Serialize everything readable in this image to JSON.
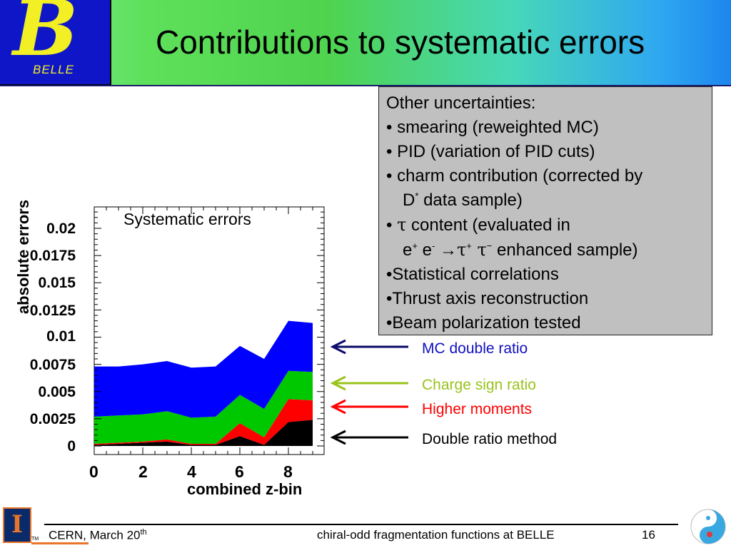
{
  "header": {
    "title": "Contributions to systematic errors",
    "logo_text": "BELLE",
    "logo_letter": "B",
    "gradient_colors": [
      "#7ef0a0",
      "#4fd34f",
      "#47d8b8",
      "#1d86ee"
    ]
  },
  "uncertainties": {
    "heading": "Other uncertainties:",
    "line1": "• smearing (reweighted MC)",
    "line2": "• PID (variation of PID cuts)",
    "line3": "• charm contribution (corrected by",
    "line4_a": "D",
    "line4_sup": "*",
    "line4_b": " data sample)",
    "line5_a": "• ",
    "line5_tau": "τ",
    "line5_b": " content (evaluated in",
    "line6_e1": "e",
    "line6_sup1": "+",
    "line6_e2": " e",
    "line6_sup2": "-",
    "line6_arrow": " →",
    "line6_tau1": "τ",
    "line6_sup3": "+",
    "line6_tau2": "  τ",
    "line6_sup4": "−",
    "line6_b": " enhanced sample)",
    "line7": "•Statistical correlations",
    "line8": "•Thrust axis reconstruction",
    "line9": "•Beam polarization tested"
  },
  "chart_data": {
    "type": "area",
    "title": "Systematic errors",
    "xlabel": "combined z-bin",
    "ylabel": "absolute errors",
    "xlim": [
      0,
      9.15
    ],
    "ylim": [
      0,
      0.022
    ],
    "x_ticks": [
      "0",
      "2",
      "4",
      "6",
      "8"
    ],
    "y_ticks": [
      "0",
      "0.0025",
      "0.005",
      "0.0075",
      "0.01",
      "0.0125",
      "0.015",
      "0.0175",
      "0.02"
    ],
    "x": [
      0,
      1,
      2,
      3,
      4,
      5,
      6,
      7,
      8,
      9
    ],
    "stacked": true,
    "series": [
      {
        "name": "Double ratio method",
        "color": "#000000",
        "values": [
          0.0001,
          0.0002,
          0.0003,
          0.0004,
          0.0001,
          0.0001,
          0.0009,
          0.0001,
          0.0022,
          0.0024
        ]
      },
      {
        "name": "Higher moments",
        "color": "#ff0000",
        "values": [
          0.0001,
          0.0001,
          0.0001,
          0.0002,
          0.0001,
          0.0001,
          0.0012,
          0.0007,
          0.0021,
          0.0018
        ]
      },
      {
        "name": "Charge sign ratio",
        "color": "#00c800",
        "values": [
          0.0025,
          0.0025,
          0.0025,
          0.0026,
          0.0024,
          0.0025,
          0.0026,
          0.0026,
          0.0026,
          0.0026
        ]
      },
      {
        "name": "MC double ratio",
        "color": "#0000ff",
        "values": [
          0.0046,
          0.0045,
          0.0046,
          0.0046,
          0.0046,
          0.0046,
          0.0045,
          0.0046,
          0.0046,
          0.0045
        ]
      }
    ]
  },
  "legend": {
    "mc_label": "MC double ratio",
    "charge_label": "Charge sign ratio",
    "higher_label": "Higher moments",
    "double_label": "Double ratio method",
    "mc_color": "#1010c0",
    "charge_color": "#99c31c",
    "higher_color": "#ff0000",
    "double_color": "#000000"
  },
  "footer": {
    "location": "CERN, March 20",
    "location_sup": "th",
    "talk_title": "chiral-odd fragmentation functions at BELLE",
    "page_number": "16",
    "illinois_letter": "I",
    "tm": "TM"
  }
}
